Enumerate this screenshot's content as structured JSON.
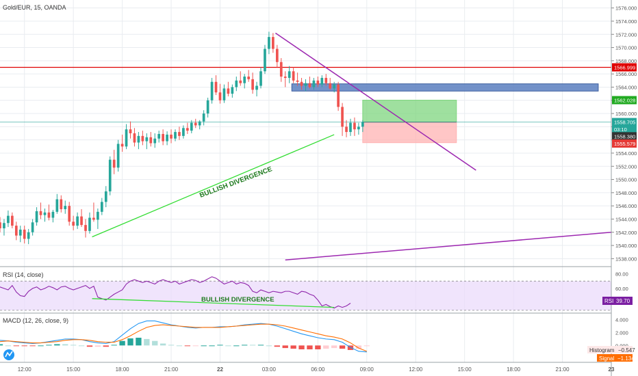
{
  "symbol": "Gold/EUR, 15, OANDA",
  "colors": {
    "up": "#26a69a",
    "down": "#ef5350",
    "grid": "#e9ecf0",
    "axis_text": "#555555",
    "resistance": "#e00000",
    "trend_purple": "#9c27b0",
    "divergence_green": "#33dd33",
    "rsi_line": "#8e24aa",
    "macd_line": "#2196f3",
    "signal_line": "#ff6d00"
  },
  "price_axis": {
    "ticks": [
      "1576.000",
      "1574.000",
      "1572.000",
      "1570.000",
      "1568.000",
      "1566.000",
      "1564.000",
      "1562.000",
      "1560.000",
      "1558.000",
      "1556.000",
      "1554.000",
      "1552.000",
      "1550.000",
      "1548.000",
      "1546.000",
      "1544.000",
      "1542.000",
      "1540.000",
      "1538.000"
    ],
    "badges": [
      {
        "text": "1566.999",
        "color": "#e00000",
        "value": 1566.999
      },
      {
        "text": "1562.028",
        "color": "#22aa22",
        "value": 1562.028
      },
      {
        "text": "1558.705",
        "color": "#26a69a",
        "value": 1558.705
      },
      {
        "text": "03:10",
        "color": "#26a69a",
        "value": 1557.62
      },
      {
        "text": "1558.380",
        "color": "#333333",
        "value": 1556.55
      },
      {
        "text": "1555.579",
        "color": "#e53935",
        "value": 1555.45
      }
    ]
  },
  "time_axis": {
    "labels": [
      "12:00",
      "15:00",
      "18:00",
      "21:00",
      "22",
      "03:00",
      "06:00",
      "09:00",
      "12:00",
      "15:00",
      "18:00",
      "21:00",
      "23"
    ],
    "bold_labels": [
      "22",
      "23"
    ]
  },
  "annotations": {
    "price_divergence": "BULLISH DIVERGENCE",
    "rsi_divergence": "BULLISH DIVERGENCE"
  },
  "rsi": {
    "title": "RSI (14, close)",
    "ticks": [
      "80.00",
      "60.00",
      "40.00"
    ],
    "badge_label": "RSI",
    "badge_value": "39.70"
  },
  "macd": {
    "title": "MACD (12, 26, close, 9)",
    "ticks": [
      "4.000",
      "2.000",
      "0.000"
    ],
    "histogram_label": "Histogram",
    "histogram_value": "−0.547",
    "signal_label": "Signal",
    "signal_value": "−1.134"
  },
  "chart_data": {
    "type": "candlestick",
    "title": "Gold/EUR, 15, OANDA",
    "ylim": [
      1537,
      1577
    ],
    "x_range_hours": [
      10.5,
      48
    ],
    "candles": [
      {
        "t": 10.5,
        "o": 1543.5,
        "h": 1544.3,
        "l": 1542.0,
        "c": 1542.6
      },
      {
        "t": 10.75,
        "o": 1542.6,
        "h": 1544.0,
        "l": 1541.5,
        "c": 1543.4
      },
      {
        "t": 11.0,
        "o": 1543.4,
        "h": 1545.3,
        "l": 1542.8,
        "c": 1544.5
      },
      {
        "t": 11.25,
        "o": 1544.5,
        "h": 1545.0,
        "l": 1542.6,
        "c": 1543.0
      },
      {
        "t": 11.5,
        "o": 1543.0,
        "h": 1543.6,
        "l": 1540.8,
        "c": 1541.5
      },
      {
        "t": 11.75,
        "o": 1541.5,
        "h": 1543.0,
        "l": 1540.5,
        "c": 1542.4
      },
      {
        "t": 12.0,
        "o": 1542.4,
        "h": 1543.0,
        "l": 1540.3,
        "c": 1541.0
      },
      {
        "t": 12.25,
        "o": 1541.0,
        "h": 1542.5,
        "l": 1540.2,
        "c": 1542.0
      },
      {
        "t": 12.5,
        "o": 1542.0,
        "h": 1544.0,
        "l": 1541.5,
        "c": 1543.5
      },
      {
        "t": 12.75,
        "o": 1543.5,
        "h": 1545.8,
        "l": 1543.0,
        "c": 1545.2
      },
      {
        "t": 13.0,
        "o": 1545.2,
        "h": 1546.5,
        "l": 1544.0,
        "c": 1544.6
      },
      {
        "t": 13.25,
        "o": 1544.6,
        "h": 1545.6,
        "l": 1543.6,
        "c": 1545.0
      },
      {
        "t": 13.5,
        "o": 1545.0,
        "h": 1546.2,
        "l": 1543.8,
        "c": 1544.2
      },
      {
        "t": 13.75,
        "o": 1544.2,
        "h": 1545.4,
        "l": 1543.5,
        "c": 1545.1
      },
      {
        "t": 14.0,
        "o": 1545.1,
        "h": 1547.8,
        "l": 1544.8,
        "c": 1547.0
      },
      {
        "t": 14.25,
        "o": 1547.0,
        "h": 1547.6,
        "l": 1545.0,
        "c": 1545.5
      },
      {
        "t": 14.5,
        "o": 1545.5,
        "h": 1546.8,
        "l": 1544.8,
        "c": 1546.0
      },
      {
        "t": 14.75,
        "o": 1546.0,
        "h": 1546.6,
        "l": 1543.0,
        "c": 1543.6
      },
      {
        "t": 15.0,
        "o": 1543.6,
        "h": 1544.5,
        "l": 1542.3,
        "c": 1543.0
      },
      {
        "t": 15.25,
        "o": 1543.0,
        "h": 1545.0,
        "l": 1542.5,
        "c": 1544.4
      },
      {
        "t": 15.5,
        "o": 1544.4,
        "h": 1545.5,
        "l": 1542.8,
        "c": 1543.1
      },
      {
        "t": 15.75,
        "o": 1543.1,
        "h": 1544.0,
        "l": 1541.2,
        "c": 1542.2
      },
      {
        "t": 16.0,
        "o": 1542.2,
        "h": 1545.0,
        "l": 1541.8,
        "c": 1544.2
      },
      {
        "t": 16.25,
        "o": 1544.2,
        "h": 1546.5,
        "l": 1543.6,
        "c": 1543.9
      },
      {
        "t": 16.5,
        "o": 1543.9,
        "h": 1545.6,
        "l": 1542.5,
        "c": 1545.1
      },
      {
        "t": 16.75,
        "o": 1545.1,
        "h": 1547.2,
        "l": 1544.6,
        "c": 1546.6
      },
      {
        "t": 17.0,
        "o": 1546.6,
        "h": 1549.0,
        "l": 1545.8,
        "c": 1548.2
      },
      {
        "t": 17.25,
        "o": 1548.2,
        "h": 1553.5,
        "l": 1547.6,
        "c": 1553.0
      },
      {
        "t": 17.5,
        "o": 1553.0,
        "h": 1554.5,
        "l": 1550.8,
        "c": 1551.8
      },
      {
        "t": 17.75,
        "o": 1551.8,
        "h": 1556.0,
        "l": 1551.2,
        "c": 1555.4
      },
      {
        "t": 18.0,
        "o": 1555.4,
        "h": 1556.8,
        "l": 1554.2,
        "c": 1555.0
      },
      {
        "t": 18.25,
        "o": 1555.0,
        "h": 1558.4,
        "l": 1554.6,
        "c": 1557.6
      },
      {
        "t": 18.5,
        "o": 1557.6,
        "h": 1558.8,
        "l": 1556.2,
        "c": 1557.0
      },
      {
        "t": 18.75,
        "o": 1557.0,
        "h": 1557.8,
        "l": 1555.0,
        "c": 1555.6
      },
      {
        "t": 19.0,
        "o": 1555.6,
        "h": 1557.2,
        "l": 1554.6,
        "c": 1556.6
      },
      {
        "t": 19.25,
        "o": 1556.6,
        "h": 1557.4,
        "l": 1555.2,
        "c": 1555.8
      },
      {
        "t": 19.5,
        "o": 1555.8,
        "h": 1557.0,
        "l": 1554.6,
        "c": 1556.4
      },
      {
        "t": 19.75,
        "o": 1556.4,
        "h": 1557.2,
        "l": 1555.0,
        "c": 1555.5
      },
      {
        "t": 20.0,
        "o": 1555.5,
        "h": 1557.0,
        "l": 1554.8,
        "c": 1556.2
      },
      {
        "t": 20.25,
        "o": 1556.2,
        "h": 1557.4,
        "l": 1555.6,
        "c": 1556.9
      },
      {
        "t": 20.5,
        "o": 1556.9,
        "h": 1557.6,
        "l": 1555.2,
        "c": 1555.8
      },
      {
        "t": 20.75,
        "o": 1555.8,
        "h": 1557.3,
        "l": 1555.2,
        "c": 1556.8
      },
      {
        "t": 21.0,
        "o": 1556.8,
        "h": 1557.6,
        "l": 1555.5,
        "c": 1556.2
      },
      {
        "t": 21.25,
        "o": 1556.2,
        "h": 1557.6,
        "l": 1555.8,
        "c": 1557.2
      },
      {
        "t": 21.5,
        "o": 1557.2,
        "h": 1558.0,
        "l": 1556.0,
        "c": 1556.6
      },
      {
        "t": 21.75,
        "o": 1556.6,
        "h": 1558.2,
        "l": 1556.2,
        "c": 1557.8
      },
      {
        "t": 22.0,
        "o": 1557.8,
        "h": 1558.6,
        "l": 1556.9,
        "c": 1557.4
      },
      {
        "t": 22.25,
        "o": 1557.4,
        "h": 1559.0,
        "l": 1557.0,
        "c": 1558.6
      },
      {
        "t": 22.5,
        "o": 1558.6,
        "h": 1559.2,
        "l": 1557.8,
        "c": 1558.2
      },
      {
        "t": 22.75,
        "o": 1558.2,
        "h": 1559.0,
        "l": 1557.6,
        "c": 1558.8
      },
      {
        "t": 23.0,
        "o": 1558.8,
        "h": 1560.5,
        "l": 1558.2,
        "c": 1560.0
      },
      {
        "t": 23.25,
        "o": 1560.0,
        "h": 1562.4,
        "l": 1559.4,
        "c": 1562.0
      },
      {
        "t": 23.5,
        "o": 1562.0,
        "h": 1565.4,
        "l": 1561.5,
        "c": 1564.8
      },
      {
        "t": 23.75,
        "o": 1564.8,
        "h": 1565.8,
        "l": 1562.8,
        "c": 1563.2
      },
      {
        "t": 24.0,
        "o": 1563.2,
        "h": 1564.5,
        "l": 1561.5,
        "c": 1562.0
      },
      {
        "t": 24.25,
        "o": 1562.0,
        "h": 1564.4,
        "l": 1561.6,
        "c": 1563.8
      },
      {
        "t": 24.5,
        "o": 1563.8,
        "h": 1564.8,
        "l": 1562.6,
        "c": 1563.0
      },
      {
        "t": 24.75,
        "o": 1563.0,
        "h": 1564.4,
        "l": 1562.4,
        "c": 1564.0
      },
      {
        "t": 25.0,
        "o": 1564.0,
        "h": 1565.6,
        "l": 1563.4,
        "c": 1565.0
      },
      {
        "t": 25.25,
        "o": 1565.0,
        "h": 1566.4,
        "l": 1564.2,
        "c": 1564.6
      },
      {
        "t": 25.5,
        "o": 1564.6,
        "h": 1566.0,
        "l": 1563.8,
        "c": 1565.6
      },
      {
        "t": 25.75,
        "o": 1565.6,
        "h": 1566.6,
        "l": 1564.8,
        "c": 1565.2
      },
      {
        "t": 26.0,
        "o": 1565.2,
        "h": 1566.2,
        "l": 1563.0,
        "c": 1563.6
      },
      {
        "t": 26.25,
        "o": 1563.6,
        "h": 1564.8,
        "l": 1562.6,
        "c": 1564.2
      },
      {
        "t": 26.5,
        "o": 1564.2,
        "h": 1567.0,
        "l": 1563.8,
        "c": 1566.4
      },
      {
        "t": 26.75,
        "o": 1566.4,
        "h": 1570.4,
        "l": 1566.0,
        "c": 1569.8
      },
      {
        "t": 27.0,
        "o": 1569.8,
        "h": 1572.4,
        "l": 1569.0,
        "c": 1571.6
      },
      {
        "t": 27.25,
        "o": 1571.6,
        "h": 1572.2,
        "l": 1569.2,
        "c": 1569.8
      },
      {
        "t": 27.5,
        "o": 1569.8,
        "h": 1570.4,
        "l": 1567.0,
        "c": 1567.8
      },
      {
        "t": 27.75,
        "o": 1567.8,
        "h": 1568.4,
        "l": 1564.8,
        "c": 1565.6
      },
      {
        "t": 28.0,
        "o": 1565.6,
        "h": 1566.4,
        "l": 1564.0,
        "c": 1565.4
      },
      {
        "t": 28.25,
        "o": 1565.4,
        "h": 1567.2,
        "l": 1564.6,
        "c": 1566.4
      },
      {
        "t": 28.5,
        "o": 1566.4,
        "h": 1567.0,
        "l": 1564.6,
        "c": 1565.0
      },
      {
        "t": 28.75,
        "o": 1565.0,
        "h": 1566.2,
        "l": 1564.2,
        "c": 1564.8
      },
      {
        "t": 29.0,
        "o": 1564.8,
        "h": 1565.4,
        "l": 1563.6,
        "c": 1564.2
      },
      {
        "t": 29.25,
        "o": 1564.2,
        "h": 1565.2,
        "l": 1563.4,
        "c": 1564.6
      },
      {
        "t": 29.5,
        "o": 1564.6,
        "h": 1565.6,
        "l": 1563.8,
        "c": 1564.0
      },
      {
        "t": 29.75,
        "o": 1564.0,
        "h": 1565.4,
        "l": 1563.6,
        "c": 1565.0
      },
      {
        "t": 30.0,
        "o": 1565.0,
        "h": 1565.6,
        "l": 1564.0,
        "c": 1564.4
      },
      {
        "t": 30.25,
        "o": 1564.4,
        "h": 1565.8,
        "l": 1564.0,
        "c": 1565.4
      },
      {
        "t": 30.5,
        "o": 1565.4,
        "h": 1566.0,
        "l": 1564.2,
        "c": 1564.6
      },
      {
        "t": 30.75,
        "o": 1564.6,
        "h": 1565.4,
        "l": 1563.6,
        "c": 1563.8
      },
      {
        "t": 31.0,
        "o": 1563.8,
        "h": 1564.8,
        "l": 1563.2,
        "c": 1564.4
      },
      {
        "t": 31.25,
        "o": 1564.4,
        "h": 1564.8,
        "l": 1560.4,
        "c": 1561.0
      },
      {
        "t": 31.5,
        "o": 1561.0,
        "h": 1561.6,
        "l": 1556.6,
        "c": 1558.0
      },
      {
        "t": 31.75,
        "o": 1558.0,
        "h": 1559.0,
        "l": 1556.4,
        "c": 1557.2
      },
      {
        "t": 32.0,
        "o": 1557.2,
        "h": 1559.2,
        "l": 1556.6,
        "c": 1558.6
      },
      {
        "t": 32.25,
        "o": 1558.6,
        "h": 1559.4,
        "l": 1556.6,
        "c": 1557.6
      },
      {
        "t": 32.5,
        "o": 1557.6,
        "h": 1558.6,
        "l": 1556.8,
        "c": 1558.0
      },
      {
        "t": 32.75,
        "o": 1558.0,
        "h": 1559.0,
        "l": 1557.2,
        "c": 1558.7
      }
    ],
    "levels": [
      {
        "name": "resistance",
        "value": 1566.999
      },
      {
        "name": "current",
        "value": 1558.705
      }
    ],
    "zones": [
      {
        "t1": 28.4,
        "t2": 47.2,
        "y1": 1563.4,
        "y2": 1564.5
      },
      {
        "t1": 32.75,
        "t2": 38.5,
        "y1": 1558.705,
        "y2": 1562.028
      },
      {
        "t1": 32.75,
        "t2": 38.5,
        "y1": 1555.579,
        "y2": 1558.705
      }
    ],
    "trendlines": [
      {
        "t1": 16.15,
        "y1": 1541.3,
        "t2": 31.0,
        "y2": 1556.8
      },
      {
        "t1": 27.4,
        "y1": 1572.2,
        "t2": 39.7,
        "y2": 1551.4
      },
      {
        "t1": 28.0,
        "y1": 1537.8,
        "t2": 48.0,
        "y2": 1542.0
      }
    ],
    "rsi": {
      "ylim": [
        28,
        88
      ],
      "values": [
        62,
        60,
        58,
        64,
        55,
        50,
        49,
        56,
        60,
        62,
        58,
        60,
        63,
        61,
        58,
        62,
        63,
        60,
        58,
        60,
        62,
        64,
        60,
        63,
        48,
        46,
        44,
        48,
        52,
        55,
        58,
        66,
        70,
        72,
        70,
        68,
        70,
        68,
        66,
        70,
        72,
        70,
        68,
        70,
        66,
        68,
        70,
        72,
        71,
        68,
        70,
        73,
        76,
        74,
        70,
        66,
        68,
        70,
        66,
        68,
        67,
        64,
        56,
        54,
        58,
        56,
        54,
        56,
        55,
        54,
        56,
        56,
        54,
        52,
        56,
        55,
        52,
        50,
        44,
        36,
        38,
        35,
        33,
        36,
        34,
        36,
        39.7
      ],
      "divergence": {
        "t1": 16.15,
        "y1": 46,
        "t2": 31.0,
        "y2": 34
      }
    },
    "macd": {
      "ylim": [
        -2.4,
        4.8
      ],
      "macd": [
        0.8,
        0.7,
        0.5,
        0.4,
        0.3,
        0.4,
        0.6,
        0.8,
        1.0,
        1.0,
        0.9,
        0.6,
        0.4,
        0.3,
        0.6,
        1.6,
        2.6,
        3.4,
        3.8,
        3.8,
        3.5,
        3.2,
        3.0,
        2.8,
        2.7,
        2.8,
        2.8,
        2.9,
        2.9,
        3.0,
        3.2,
        3.3,
        3.4,
        3.3,
        3.0,
        2.6,
        2.2,
        1.8,
        1.5,
        1.2,
        1.0,
        0.9,
        0.5,
        -0.3,
        -0.9,
        -1.0
      ],
      "signal": [
        0.6,
        0.7,
        0.6,
        0.5,
        0.4,
        0.4,
        0.5,
        0.6,
        0.8,
        0.9,
        0.9,
        0.8,
        0.6,
        0.5,
        0.5,
        0.9,
        1.5,
        2.2,
        2.8,
        3.1,
        3.2,
        3.1,
        3.0,
        2.9,
        2.8,
        2.8,
        2.8,
        2.8,
        2.9,
        3.0,
        3.1,
        3.2,
        3.3,
        3.3,
        3.2,
        3.0,
        2.7,
        2.4,
        2.1,
        1.8,
        1.5,
        1.3,
        1.0,
        0.4,
        -0.4,
        -0.9
      ]
    }
  }
}
